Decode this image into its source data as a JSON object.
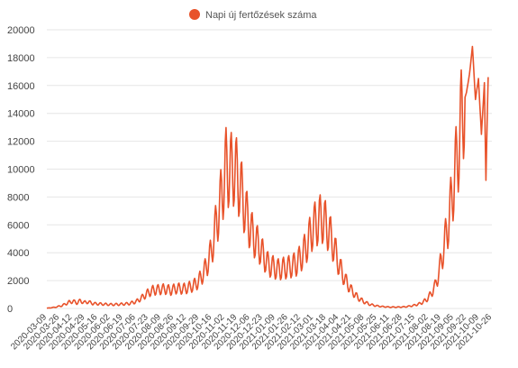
{
  "chart_data": {
    "type": "line",
    "title": "",
    "xlabel": "",
    "ylabel": "",
    "ylim": [
      0,
      20000
    ],
    "yticks": [
      0,
      2000,
      4000,
      6000,
      8000,
      10000,
      12000,
      14000,
      16000,
      18000,
      20000
    ],
    "grid": true,
    "legend_position": "top",
    "series": [
      {
        "name": "Napi új fertőzések száma",
        "color": "#e8522a",
        "values_description_points": []
      }
    ],
    "x_tick_labels": [
      "2020-03-09",
      "2020-03-26",
      "2020-04-12",
      "2020-04-29",
      "2020-05-16",
      "2020-06-02",
      "2020-06-19",
      "2020-07-06",
      "2020-07-23",
      "2020-08-09",
      "2020-08-26",
      "2020-09-12",
      "2020-09-29",
      "2020-10-16",
      "2020-11-02",
      "2020-11-19",
      "2020-12-06",
      "2020-12-23",
      "2021-01-09",
      "2021-01-26",
      "2021-02-12",
      "2021-03-01",
      "2021-03-18",
      "2021-04-04",
      "2021-04-21",
      "2021-05-08",
      "2021-05-25",
      "2021-06-11",
      "2021-06-28",
      "2021-07-15",
      "2021-08-02",
      "2021-08-19",
      "2021-09-05",
      "2021-09-22",
      "2021-10-09",
      "2021-10-26"
    ],
    "x_tick_days": [
      0,
      17,
      34,
      51,
      68,
      85,
      102,
      119,
      136,
      153,
      170,
      187,
      204,
      221,
      238,
      255,
      272,
      289,
      306,
      323,
      340,
      357,
      374,
      391,
      408,
      425,
      442,
      459,
      476,
      493,
      511,
      528,
      545,
      562,
      579,
      596
    ],
    "x_range_days": [
      0,
      596
    ],
    "keypoints": [
      [
        0,
        20
      ],
      [
        10,
        80
      ],
      [
        20,
        200
      ],
      [
        30,
        450
      ],
      [
        35,
        520
      ],
      [
        40,
        400
      ],
      [
        45,
        550
      ],
      [
        50,
        420
      ],
      [
        55,
        480
      ],
      [
        62,
        350
      ],
      [
        70,
        330
      ],
      [
        78,
        300
      ],
      [
        88,
        280
      ],
      [
        98,
        300
      ],
      [
        110,
        350
      ],
      [
        120,
        500
      ],
      [
        128,
        800
      ],
      [
        135,
        1100
      ],
      [
        142,
        1300
      ],
      [
        150,
        1350
      ],
      [
        158,
        1400
      ],
      [
        166,
        1300
      ],
      [
        174,
        1450
      ],
      [
        182,
        1400
      ],
      [
        190,
        1500
      ],
      [
        198,
        1700
      ],
      [
        204,
        2000
      ],
      [
        212,
        2800
      ],
      [
        220,
        4000
      ],
      [
        226,
        5800
      ],
      [
        232,
        7500
      ],
      [
        236,
        8800
      ],
      [
        240,
        10200
      ],
      [
        245,
        9800
      ],
      [
        250,
        10100
      ],
      [
        255,
        9500
      ],
      [
        260,
        8500
      ],
      [
        266,
        7000
      ],
      [
        272,
        5800
      ],
      [
        278,
        5000
      ],
      [
        284,
        4500
      ],
      [
        290,
        3800
      ],
      [
        296,
        3200
      ],
      [
        302,
        3000
      ],
      [
        310,
        2800
      ],
      [
        318,
        2900
      ],
      [
        326,
        3000
      ],
      [
        334,
        3200
      ],
      [
        342,
        3800
      ],
      [
        350,
        4800
      ],
      [
        356,
        5800
      ],
      [
        362,
        6200
      ],
      [
        368,
        6500
      ],
      [
        372,
        6200
      ],
      [
        378,
        5500
      ],
      [
        384,
        4500
      ],
      [
        392,
        3000
      ],
      [
        400,
        2000
      ],
      [
        408,
        1300
      ],
      [
        416,
        800
      ],
      [
        424,
        500
      ],
      [
        432,
        300
      ],
      [
        440,
        200
      ],
      [
        450,
        130
      ],
      [
        460,
        100
      ],
      [
        470,
        100
      ],
      [
        480,
        120
      ],
      [
        490,
        200
      ],
      [
        500,
        350
      ],
      [
        508,
        600
      ],
      [
        514,
        1000
      ],
      [
        520,
        1600
      ],
      [
        526,
        2800
      ],
      [
        532,
        4500
      ],
      [
        538,
        6200
      ],
      [
        542,
        7800
      ],
      [
        546,
        9500
      ],
      [
        550,
        11000
      ],
      [
        554,
        13000
      ],
      [
        558,
        14800
      ],
      [
        562,
        15500
      ],
      [
        566,
        16800
      ],
      [
        570,
        18800
      ],
      [
        574,
        15000
      ],
      [
        578,
        16500
      ],
      [
        582,
        12500
      ],
      [
        586,
        16200
      ],
      [
        588,
        9200
      ],
      [
        591,
        16600
      ]
    ]
  },
  "legend": {
    "label": "Napi új fertőzések száma"
  }
}
